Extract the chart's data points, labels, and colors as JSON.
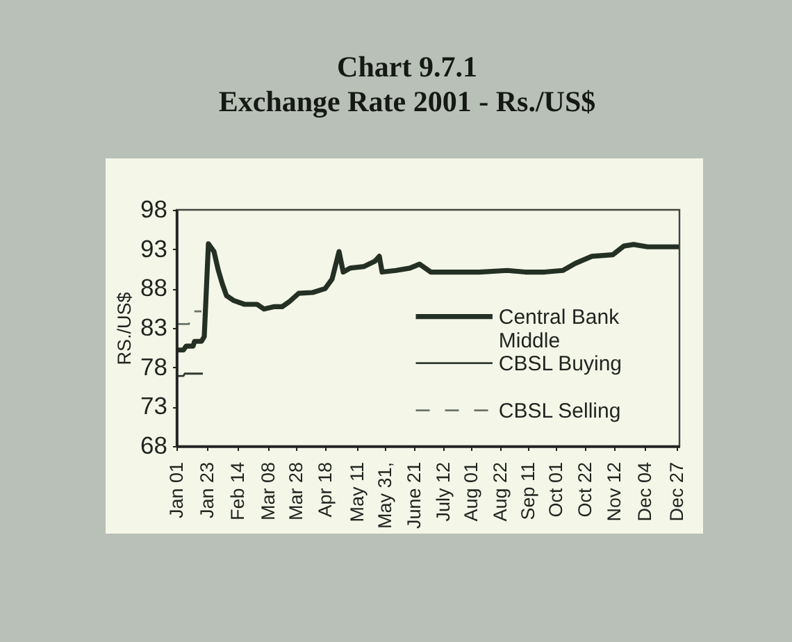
{
  "chart_data": {
    "type": "line",
    "title": "Chart 9.7.1",
    "subtitle": "Exchange Rate 2001 - Rs./US$",
    "ylabel": "RS./US$",
    "xlim": [
      "2001-01-01",
      "2001-12-29"
    ],
    "xticks": [
      {
        "value": "2001-01-01",
        "label": "Jan 01"
      },
      {
        "value": "2001-01-23",
        "label": "Jan 23"
      },
      {
        "value": "2001-02-14",
        "label": "Feb 14"
      },
      {
        "value": "2001-03-08",
        "label": "Mar 08"
      },
      {
        "value": "2001-03-28",
        "label": "Mar 28"
      },
      {
        "value": "2001-04-18",
        "label": "Apr 18"
      },
      {
        "value": "2001-05-11",
        "label": "May 11"
      },
      {
        "value": "2001-05-31",
        "label": "May 31,"
      },
      {
        "value": "2001-06-21",
        "label": "June 21"
      },
      {
        "value": "2001-07-12",
        "label": "July 12"
      },
      {
        "value": "2001-08-01",
        "label": "Aug 01"
      },
      {
        "value": "2001-08-22",
        "label": "Aug 22"
      },
      {
        "value": "2001-09-11",
        "label": "Sep 11"
      },
      {
        "value": "2001-10-01",
        "label": "Oct 01"
      },
      {
        "value": "2001-10-22",
        "label": "Oct 22"
      },
      {
        "value": "2001-11-12",
        "label": "Nov 12"
      },
      {
        "value": "2001-12-04",
        "label": "Dec 04"
      },
      {
        "value": "2001-12-27",
        "label": "Dec 27"
      }
    ],
    "ylim": [
      68,
      98
    ],
    "yticks": [
      68,
      73,
      78,
      83,
      88,
      93,
      98
    ],
    "legend": "right",
    "line_style": "solid",
    "series": [
      {
        "name": "Central Bank Middle",
        "color": "#243024",
        "x": [
          "2001-01-01",
          "2001-01-06",
          "2001-01-08",
          "2001-01-13",
          "2001-01-14",
          "2001-01-19",
          "2001-01-21",
          "2001-01-24",
          "2001-01-28",
          "2001-01-31",
          "2001-02-03",
          "2001-02-06",
          "2001-02-11",
          "2001-02-19",
          "2001-02-28",
          "2001-03-05",
          "2001-03-12",
          "2001-03-18",
          "2001-03-23",
          "2001-03-30",
          "2001-04-09",
          "2001-04-18",
          "2001-04-23",
          "2001-04-28",
          "2001-05-01",
          "2001-05-06",
          "2001-05-16",
          "2001-05-24",
          "2001-05-27",
          "2001-05-29",
          "2001-06-08",
          "2001-06-18",
          "2001-06-25",
          "2001-07-03",
          "2001-07-18",
          "2001-08-07",
          "2001-08-27",
          "2001-09-09",
          "2001-09-23",
          "2001-10-06",
          "2001-10-15",
          "2001-10-27",
          "2001-11-11",
          "2001-11-19",
          "2001-11-26",
          "2001-12-06",
          "2001-12-29"
        ],
        "values": [
          80.2,
          80.2,
          80.7,
          80.7,
          81.3,
          81.3,
          81.9,
          93.7,
          92.7,
          90.4,
          88.6,
          87.1,
          86.5,
          86.0,
          86.0,
          85.4,
          85.7,
          85.7,
          86.3,
          87.4,
          87.5,
          88.0,
          89.2,
          92.7,
          90.1,
          90.6,
          90.8,
          91.5,
          92.1,
          90.1,
          90.3,
          90.6,
          91.1,
          90.1,
          90.1,
          90.1,
          90.3,
          90.1,
          90.1,
          90.3,
          91.2,
          92.1,
          92.3,
          93.4,
          93.6,
          93.3,
          93.3
        ]
      },
      {
        "name": "CBSL Buying",
        "color": "#2f3a2f",
        "x": [
          "2001-01-01",
          "2001-01-06",
          "2001-01-07",
          "2001-01-20"
        ],
        "values": [
          76.9,
          76.9,
          77.2,
          77.2
        ]
      },
      {
        "name": "CBSL Selling",
        "color": "#6b7469",
        "line_style": "dashed",
        "x": [
          "2001-01-01",
          "2001-01-10",
          "2001-01-11",
          "2001-01-19"
        ],
        "values": [
          83.5,
          83.5,
          85.1,
          85.1
        ]
      }
    ]
  }
}
